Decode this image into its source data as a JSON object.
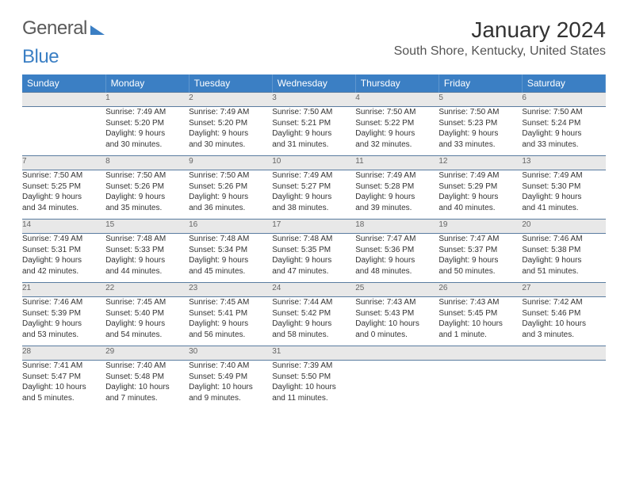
{
  "brand": {
    "part1": "General",
    "part2": "Blue"
  },
  "title": "January 2024",
  "location": "South Shore, Kentucky, United States",
  "colors": {
    "header_bg": "#3b7fc4",
    "header_text": "#ffffff",
    "daynum_bg": "#e8e8e8",
    "daynum_text": "#666666",
    "border": "#5a7ca0",
    "body_text": "#333333",
    "location_text": "#555555"
  },
  "fonts": {
    "title_size_pt": 21,
    "location_size_pt": 12,
    "dow_size_pt": 9,
    "daynum_size_pt": 8,
    "detail_size_pt": 7.5
  },
  "dow": [
    "Sunday",
    "Monday",
    "Tuesday",
    "Wednesday",
    "Thursday",
    "Friday",
    "Saturday"
  ],
  "weeks": [
    [
      null,
      {
        "n": "1",
        "sr": "Sunrise: 7:49 AM",
        "ss": "Sunset: 5:20 PM",
        "d1": "Daylight: 9 hours",
        "d2": "and 30 minutes."
      },
      {
        "n": "2",
        "sr": "Sunrise: 7:49 AM",
        "ss": "Sunset: 5:20 PM",
        "d1": "Daylight: 9 hours",
        "d2": "and 30 minutes."
      },
      {
        "n": "3",
        "sr": "Sunrise: 7:50 AM",
        "ss": "Sunset: 5:21 PM",
        "d1": "Daylight: 9 hours",
        "d2": "and 31 minutes."
      },
      {
        "n": "4",
        "sr": "Sunrise: 7:50 AM",
        "ss": "Sunset: 5:22 PM",
        "d1": "Daylight: 9 hours",
        "d2": "and 32 minutes."
      },
      {
        "n": "5",
        "sr": "Sunrise: 7:50 AM",
        "ss": "Sunset: 5:23 PM",
        "d1": "Daylight: 9 hours",
        "d2": "and 33 minutes."
      },
      {
        "n": "6",
        "sr": "Sunrise: 7:50 AM",
        "ss": "Sunset: 5:24 PM",
        "d1": "Daylight: 9 hours",
        "d2": "and 33 minutes."
      }
    ],
    [
      {
        "n": "7",
        "sr": "Sunrise: 7:50 AM",
        "ss": "Sunset: 5:25 PM",
        "d1": "Daylight: 9 hours",
        "d2": "and 34 minutes."
      },
      {
        "n": "8",
        "sr": "Sunrise: 7:50 AM",
        "ss": "Sunset: 5:26 PM",
        "d1": "Daylight: 9 hours",
        "d2": "and 35 minutes."
      },
      {
        "n": "9",
        "sr": "Sunrise: 7:50 AM",
        "ss": "Sunset: 5:26 PM",
        "d1": "Daylight: 9 hours",
        "d2": "and 36 minutes."
      },
      {
        "n": "10",
        "sr": "Sunrise: 7:49 AM",
        "ss": "Sunset: 5:27 PM",
        "d1": "Daylight: 9 hours",
        "d2": "and 38 minutes."
      },
      {
        "n": "11",
        "sr": "Sunrise: 7:49 AM",
        "ss": "Sunset: 5:28 PM",
        "d1": "Daylight: 9 hours",
        "d2": "and 39 minutes."
      },
      {
        "n": "12",
        "sr": "Sunrise: 7:49 AM",
        "ss": "Sunset: 5:29 PM",
        "d1": "Daylight: 9 hours",
        "d2": "and 40 minutes."
      },
      {
        "n": "13",
        "sr": "Sunrise: 7:49 AM",
        "ss": "Sunset: 5:30 PM",
        "d1": "Daylight: 9 hours",
        "d2": "and 41 minutes."
      }
    ],
    [
      {
        "n": "14",
        "sr": "Sunrise: 7:49 AM",
        "ss": "Sunset: 5:31 PM",
        "d1": "Daylight: 9 hours",
        "d2": "and 42 minutes."
      },
      {
        "n": "15",
        "sr": "Sunrise: 7:48 AM",
        "ss": "Sunset: 5:33 PM",
        "d1": "Daylight: 9 hours",
        "d2": "and 44 minutes."
      },
      {
        "n": "16",
        "sr": "Sunrise: 7:48 AM",
        "ss": "Sunset: 5:34 PM",
        "d1": "Daylight: 9 hours",
        "d2": "and 45 minutes."
      },
      {
        "n": "17",
        "sr": "Sunrise: 7:48 AM",
        "ss": "Sunset: 5:35 PM",
        "d1": "Daylight: 9 hours",
        "d2": "and 47 minutes."
      },
      {
        "n": "18",
        "sr": "Sunrise: 7:47 AM",
        "ss": "Sunset: 5:36 PM",
        "d1": "Daylight: 9 hours",
        "d2": "and 48 minutes."
      },
      {
        "n": "19",
        "sr": "Sunrise: 7:47 AM",
        "ss": "Sunset: 5:37 PM",
        "d1": "Daylight: 9 hours",
        "d2": "and 50 minutes."
      },
      {
        "n": "20",
        "sr": "Sunrise: 7:46 AM",
        "ss": "Sunset: 5:38 PM",
        "d1": "Daylight: 9 hours",
        "d2": "and 51 minutes."
      }
    ],
    [
      {
        "n": "21",
        "sr": "Sunrise: 7:46 AM",
        "ss": "Sunset: 5:39 PM",
        "d1": "Daylight: 9 hours",
        "d2": "and 53 minutes."
      },
      {
        "n": "22",
        "sr": "Sunrise: 7:45 AM",
        "ss": "Sunset: 5:40 PM",
        "d1": "Daylight: 9 hours",
        "d2": "and 54 minutes."
      },
      {
        "n": "23",
        "sr": "Sunrise: 7:45 AM",
        "ss": "Sunset: 5:41 PM",
        "d1": "Daylight: 9 hours",
        "d2": "and 56 minutes."
      },
      {
        "n": "24",
        "sr": "Sunrise: 7:44 AM",
        "ss": "Sunset: 5:42 PM",
        "d1": "Daylight: 9 hours",
        "d2": "and 58 minutes."
      },
      {
        "n": "25",
        "sr": "Sunrise: 7:43 AM",
        "ss": "Sunset: 5:43 PM",
        "d1": "Daylight: 10 hours",
        "d2": "and 0 minutes."
      },
      {
        "n": "26",
        "sr": "Sunrise: 7:43 AM",
        "ss": "Sunset: 5:45 PM",
        "d1": "Daylight: 10 hours",
        "d2": "and 1 minute."
      },
      {
        "n": "27",
        "sr": "Sunrise: 7:42 AM",
        "ss": "Sunset: 5:46 PM",
        "d1": "Daylight: 10 hours",
        "d2": "and 3 minutes."
      }
    ],
    [
      {
        "n": "28",
        "sr": "Sunrise: 7:41 AM",
        "ss": "Sunset: 5:47 PM",
        "d1": "Daylight: 10 hours",
        "d2": "and 5 minutes."
      },
      {
        "n": "29",
        "sr": "Sunrise: 7:40 AM",
        "ss": "Sunset: 5:48 PM",
        "d1": "Daylight: 10 hours",
        "d2": "and 7 minutes."
      },
      {
        "n": "30",
        "sr": "Sunrise: 7:40 AM",
        "ss": "Sunset: 5:49 PM",
        "d1": "Daylight: 10 hours",
        "d2": "and 9 minutes."
      },
      {
        "n": "31",
        "sr": "Sunrise: 7:39 AM",
        "ss": "Sunset: 5:50 PM",
        "d1": "Daylight: 10 hours",
        "d2": "and 11 minutes."
      },
      null,
      null,
      null
    ]
  ]
}
